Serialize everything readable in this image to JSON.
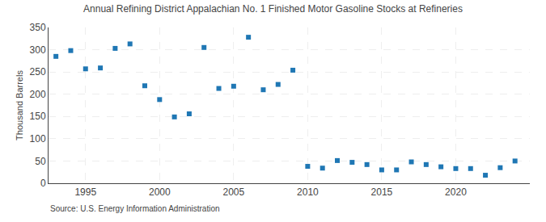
{
  "chart_data": {
    "type": "scatter",
    "title": "Annual Refining District Appalachian No. 1 Finished Motor Gasoline Stocks at Refineries",
    "ylabel": "Thousand Barrels",
    "annotations": [
      "Source: U.S. Energy Information Administration"
    ],
    "marker": "square",
    "grid": true,
    "x": [
      1993,
      1994,
      1995,
      1996,
      1997,
      1998,
      1999,
      2000,
      2001,
      2002,
      2003,
      2004,
      2005,
      2006,
      2007,
      2008,
      2009,
      2010,
      2011,
      2012,
      2013,
      2014,
      2015,
      2016,
      2017,
      2018,
      2019,
      2020,
      2021,
      2022,
      2023,
      2024
    ],
    "values": [
      285,
      298,
      257,
      259,
      303,
      313,
      219,
      188,
      149,
      156,
      305,
      213,
      218,
      328,
      210,
      222,
      254,
      38,
      34,
      51,
      47,
      42,
      30,
      30,
      48,
      42,
      37,
      33,
      33,
      18,
      35,
      50
    ],
    "xlim": [
      1992.5,
      2025
    ],
    "xticks": [
      1995,
      2000,
      2005,
      2010,
      2015,
      2020
    ],
    "ylim": [
      0,
      350
    ],
    "yticks": [
      0,
      50,
      100,
      150,
      200,
      250,
      300,
      350
    ]
  }
}
